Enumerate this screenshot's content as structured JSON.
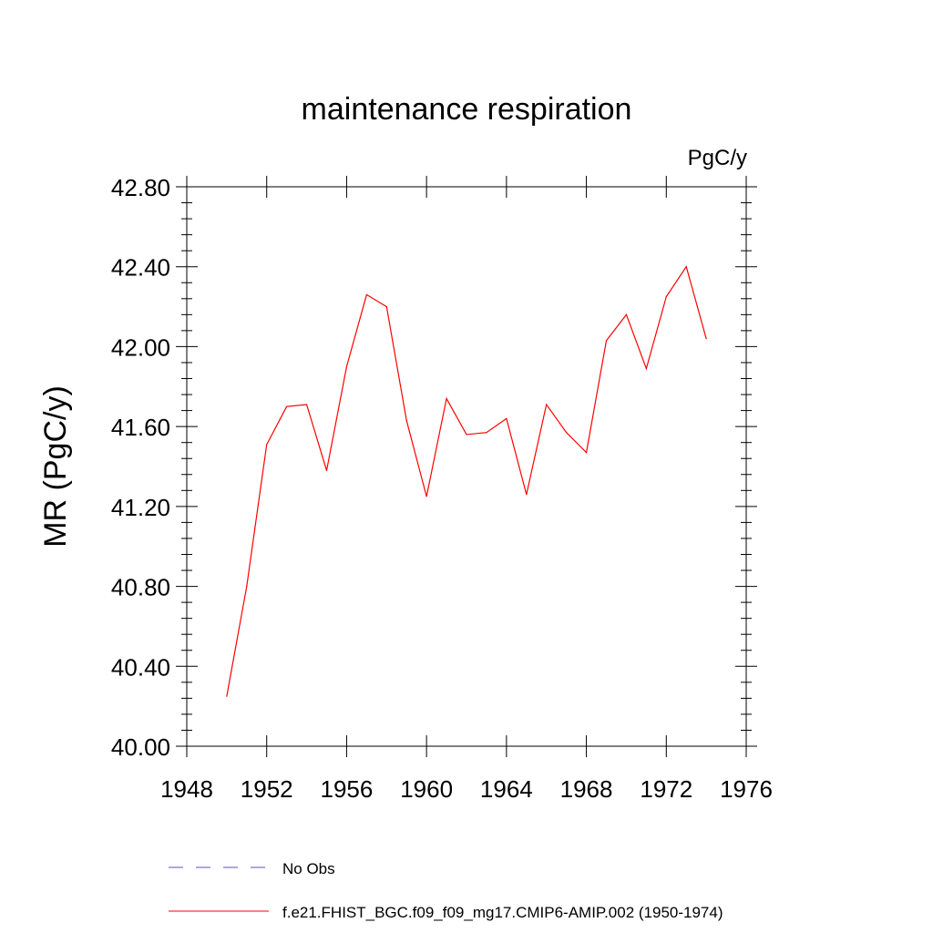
{
  "chart_data": {
    "type": "line",
    "title": "maintenance respiration",
    "units_label": "PgC/y",
    "ylabel": "MR  (PgC/y)",
    "xlabel": "",
    "xlim": [
      1948,
      1976
    ],
    "ylim": [
      40.0,
      42.8
    ],
    "x_ticks": [
      1948,
      1952,
      1956,
      1960,
      1964,
      1968,
      1972,
      1976
    ],
    "y_ticks": [
      "40.00",
      "40.40",
      "40.80",
      "41.20",
      "41.60",
      "42.00",
      "42.40",
      "42.80"
    ],
    "grid": false,
    "legend_position": "bottom",
    "series": [
      {
        "name": "No Obs",
        "color": "#5555bb",
        "dash": "dashed",
        "x": [],
        "values": []
      },
      {
        "name": "f.e21.FHIST_BGC.f09_f09_mg17.CMIP6-AMIP.002 (1950-1974)",
        "color": "#ff0000",
        "dash": "solid",
        "x": [
          1950,
          1951,
          1952,
          1953,
          1954,
          1955,
          1956,
          1957,
          1958,
          1959,
          1960,
          1961,
          1962,
          1963,
          1964,
          1965,
          1966,
          1967,
          1968,
          1969,
          1970,
          1971,
          1972,
          1973,
          1974
        ],
        "values": [
          40.25,
          40.8,
          41.51,
          41.7,
          41.71,
          41.38,
          41.9,
          42.26,
          42.2,
          41.63,
          41.25,
          41.74,
          41.56,
          41.57,
          41.64,
          41.26,
          41.71,
          41.57,
          41.47,
          42.03,
          42.16,
          41.89,
          42.25,
          42.4,
          42.04
        ]
      }
    ]
  }
}
